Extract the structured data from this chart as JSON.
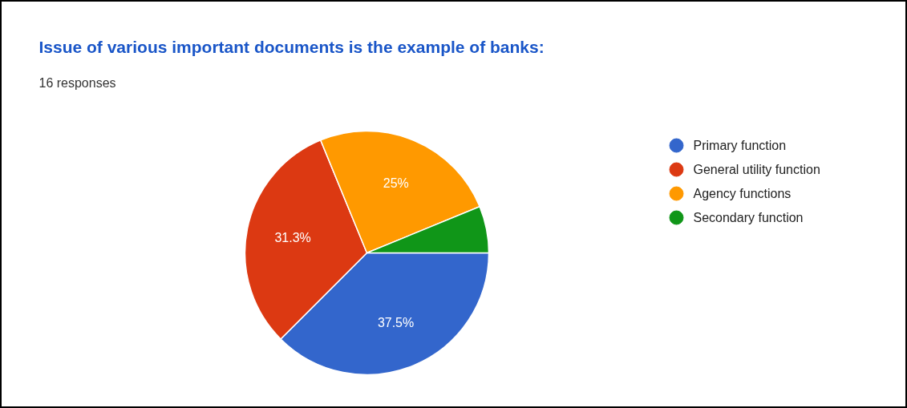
{
  "chart_data": {
    "type": "pie",
    "title": "Issue of various important documents is the example of banks:",
    "subtitle": "16 responses",
    "categories": [
      "Primary function",
      "General utility function",
      "Agency functions",
      "Secondary function"
    ],
    "values": [
      37.5,
      31.3,
      25,
      6.2
    ],
    "colors": [
      "#3366cc",
      "#dc3912",
      "#ff9900",
      "#109618"
    ],
    "value_labels": [
      "37.5%",
      "31.3%",
      "25%",
      null
    ],
    "legend": "right"
  }
}
